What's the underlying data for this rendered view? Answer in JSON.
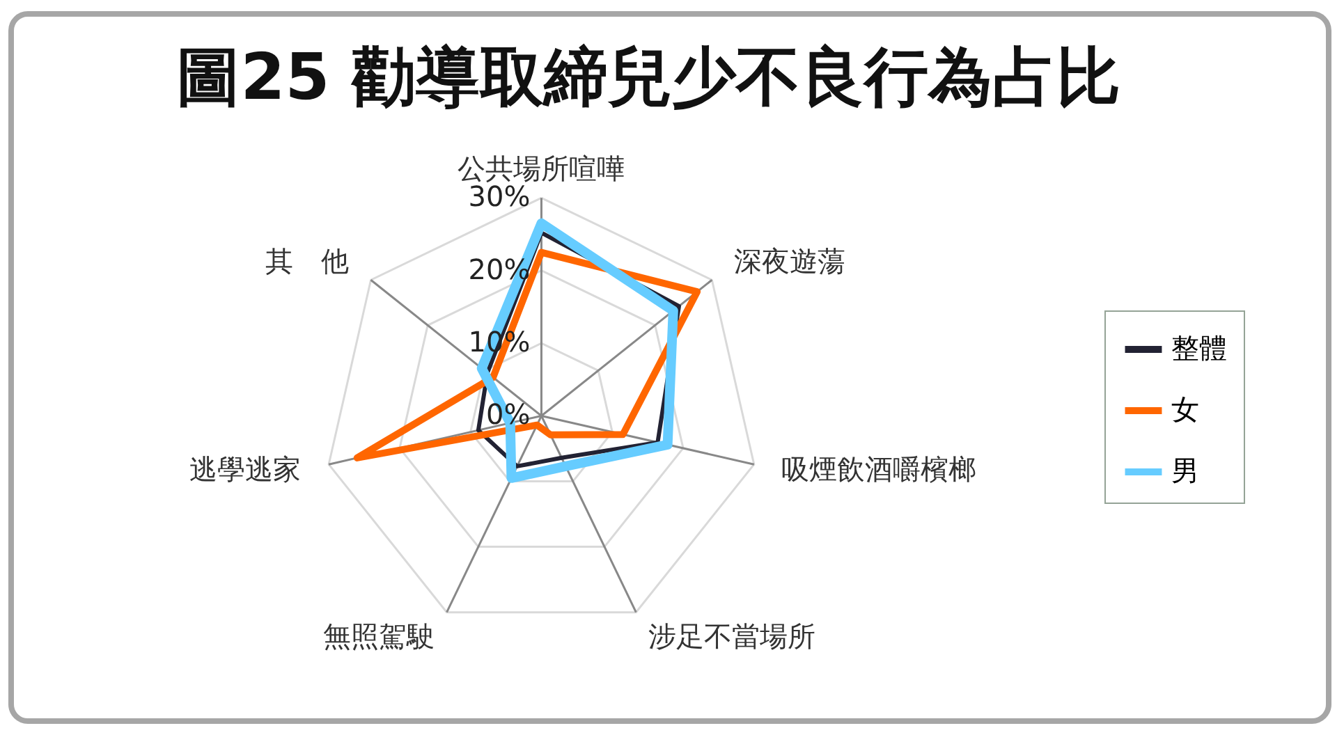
{
  "chart_data": {
    "type": "radar",
    "title": "圖25   勸導取締兒少不良行為占比",
    "categories": [
      "公共場所喧嘩",
      "深夜遊蕩",
      "吸煙飲酒嚼檳榔",
      "涉足不當場所",
      "無照駕駛",
      "逃學逃家",
      "其　他"
    ],
    "series": [
      {
        "name": "整體",
        "color": "#222233",
        "values": [
          25.2,
          24.2,
          16.4,
          6.4,
          7.7,
          8.9,
          9.5
        ]
      },
      {
        "name": "女",
        "color": "#ff6600",
        "values": [
          22.5,
          27.4,
          11.5,
          2.9,
          1.4,
          26,
          8.5
        ]
      },
      {
        "name": "男",
        "color": "#66ccff",
        "values": [
          26.5,
          23.2,
          17.8,
          7.7,
          9.5,
          4.4,
          10.5
        ]
      }
    ],
    "ylim": [
      0,
      30
    ],
    "yticks": [
      {
        "value": 0,
        "label": "0%"
      },
      {
        "value": 10,
        "label": "10%"
      },
      {
        "value": 20,
        "label": "20%"
      },
      {
        "value": 30,
        "label": "30%"
      }
    ],
    "grid": true,
    "legend": "right",
    "line_style": "solid",
    "marker": "none"
  }
}
